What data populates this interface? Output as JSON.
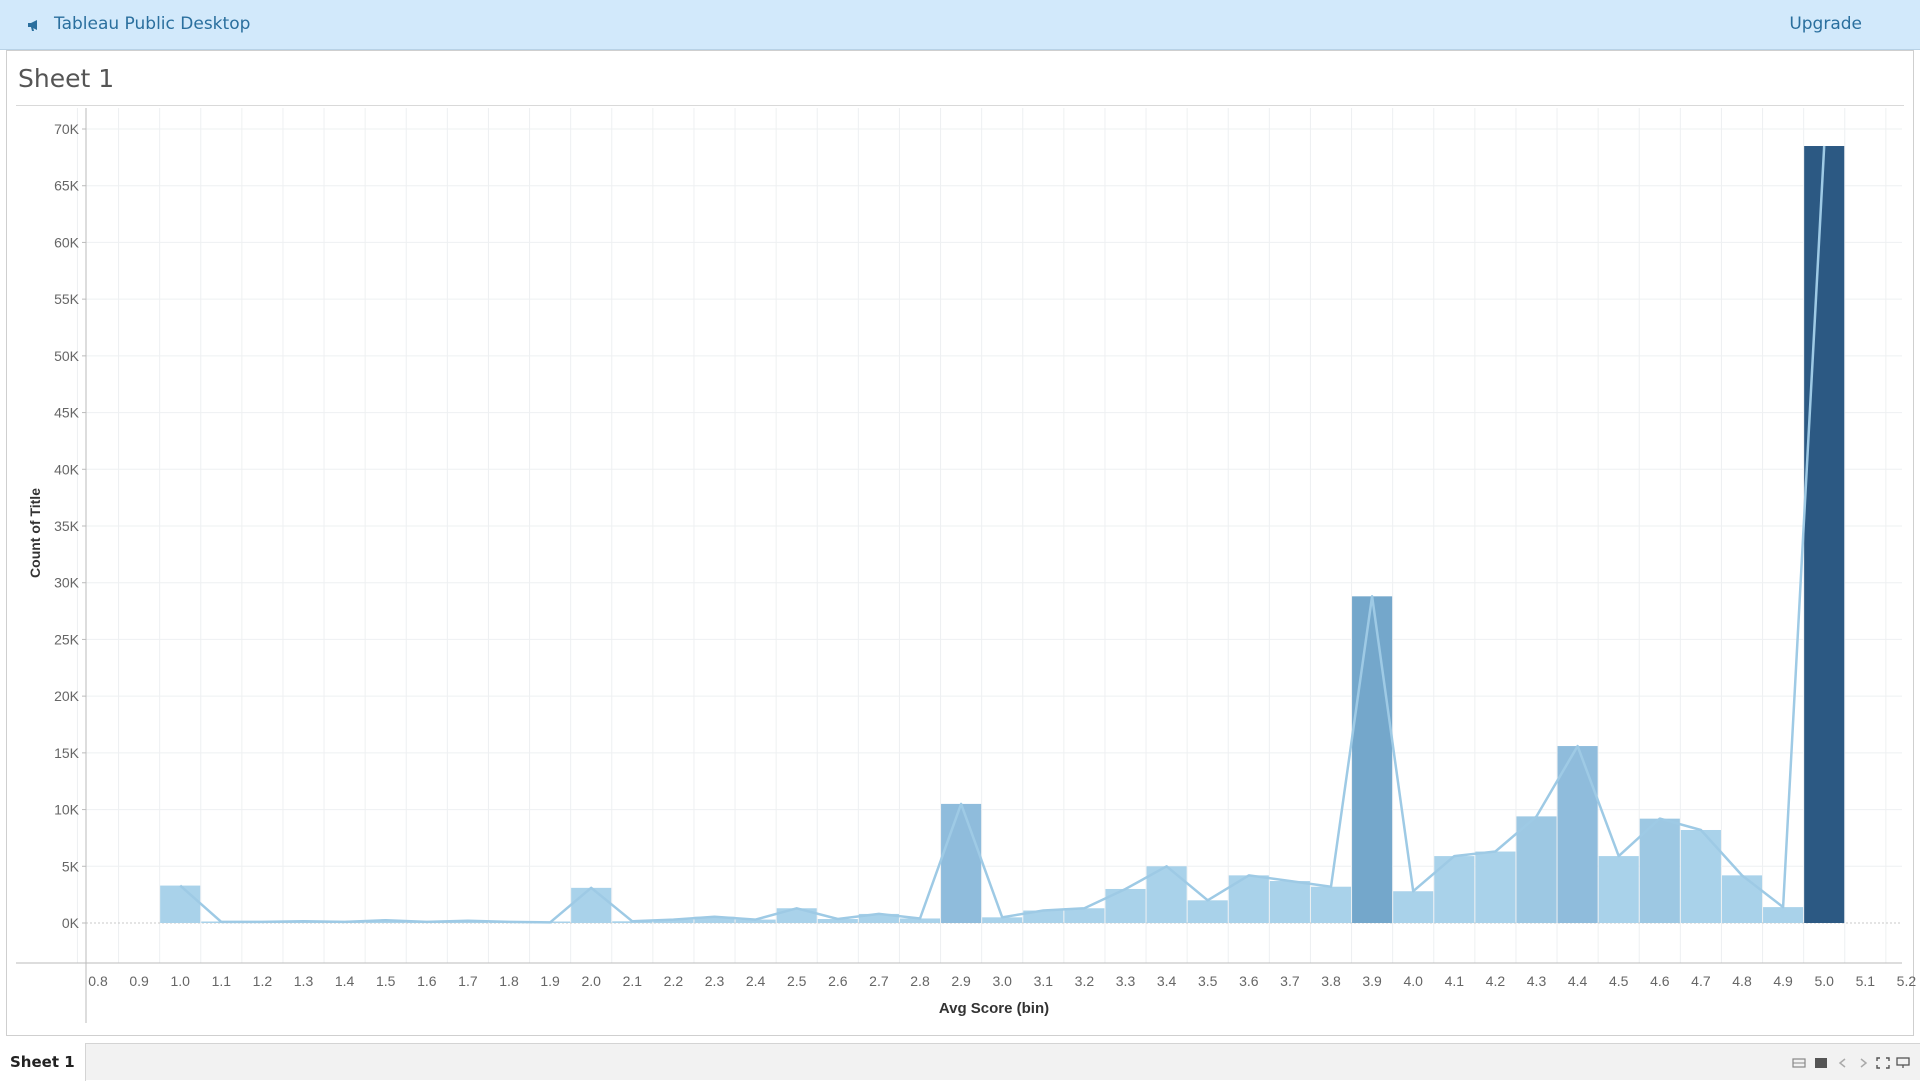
{
  "app": {
    "title": "Tableau Public Desktop",
    "upgrade_label": "Upgrade",
    "icon": "megaphone-icon"
  },
  "sheet": {
    "title": "Sheet 1"
  },
  "tabs": [
    {
      "label": "Sheet 1",
      "active": true
    }
  ],
  "bottom_controls": [
    "grid-view-icon",
    "single-view-icon",
    "prev-icon",
    "next-icon",
    "fullscreen-icon",
    "presentation-icon"
  ],
  "colors": {
    "topbar": "#d2e9fb",
    "light_bar": "#a9d2ea",
    "mid_bar": "#9dc8e3",
    "dark_bar": "#74a7cb",
    "darkest_bar": "#2c5983",
    "line": "#9ecae5"
  },
  "chart_data": {
    "type": "bar",
    "xlabel": "Avg Score (bin)",
    "ylabel": "Count of Title",
    "x_ticks": [
      "0.8",
      "0.9",
      "1.0",
      "1.1",
      "1.2",
      "1.3",
      "1.4",
      "1.5",
      "1.6",
      "1.7",
      "1.8",
      "1.9",
      "2.0",
      "2.1",
      "2.2",
      "2.3",
      "2.4",
      "2.5",
      "2.6",
      "2.7",
      "2.8",
      "2.9",
      "3.0",
      "3.1",
      "3.2",
      "3.3",
      "3.4",
      "3.5",
      "3.6",
      "3.7",
      "3.8",
      "3.9",
      "4.0",
      "4.1",
      "4.2",
      "4.3",
      "4.4",
      "4.5",
      "4.6",
      "4.7",
      "4.8",
      "4.9",
      "5.0",
      "5.1",
      "5.2"
    ],
    "y_ticks": [
      "0K",
      "5K",
      "10K",
      "15K",
      "20K",
      "25K",
      "30K",
      "35K",
      "40K",
      "45K",
      "50K",
      "55K",
      "60K",
      "65K",
      "70K"
    ],
    "ylim": [
      0,
      70000
    ],
    "xlim": [
      0.77,
      5.25
    ],
    "grid": true,
    "bin_width": 0.1,
    "bins": [
      {
        "x": 1.0,
        "value": 3300
      },
      {
        "x": 1.1,
        "value": 100
      },
      {
        "x": 1.2,
        "value": 100
      },
      {
        "x": 1.3,
        "value": 150
      },
      {
        "x": 1.4,
        "value": 100
      },
      {
        "x": 1.5,
        "value": 250
      },
      {
        "x": 1.6,
        "value": 100
      },
      {
        "x": 1.7,
        "value": 200
      },
      {
        "x": 1.8,
        "value": 100
      },
      {
        "x": 1.9,
        "value": 50
      },
      {
        "x": 2.0,
        "value": 3100
      },
      {
        "x": 2.1,
        "value": 150
      },
      {
        "x": 2.2,
        "value": 300
      },
      {
        "x": 2.3,
        "value": 550
      },
      {
        "x": 2.4,
        "value": 300
      },
      {
        "x": 2.5,
        "value": 1300
      },
      {
        "x": 2.6,
        "value": 350
      },
      {
        "x": 2.7,
        "value": 800
      },
      {
        "x": 2.8,
        "value": 400
      },
      {
        "x": 2.9,
        "value": 10500
      },
      {
        "x": 3.0,
        "value": 500
      },
      {
        "x": 3.1,
        "value": 1100
      },
      {
        "x": 3.2,
        "value": 1300
      },
      {
        "x": 3.3,
        "value": 3000
      },
      {
        "x": 3.4,
        "value": 5000
      },
      {
        "x": 3.5,
        "value": 2000
      },
      {
        "x": 3.6,
        "value": 4200
      },
      {
        "x": 3.7,
        "value": 3700
      },
      {
        "x": 3.8,
        "value": 3200
      },
      {
        "x": 3.9,
        "value": 28800
      },
      {
        "x": 4.0,
        "value": 2800
      },
      {
        "x": 4.1,
        "value": 5900
      },
      {
        "x": 4.2,
        "value": 6300
      },
      {
        "x": 4.3,
        "value": 9400
      },
      {
        "x": 4.4,
        "value": 15600
      },
      {
        "x": 4.5,
        "value": 5900
      },
      {
        "x": 4.6,
        "value": 9200
      },
      {
        "x": 4.7,
        "value": 8200
      },
      {
        "x": 4.8,
        "value": 4200
      },
      {
        "x": 4.9,
        "value": 1400
      },
      {
        "x": 5.0,
        "value": 68500
      }
    ]
  }
}
